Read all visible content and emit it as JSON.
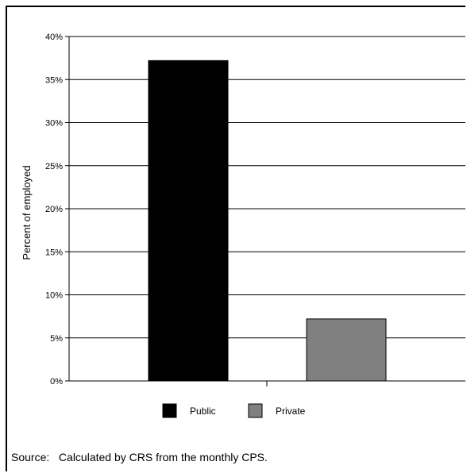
{
  "chart_data": {
    "type": "bar",
    "categories": [
      "Public",
      "Private"
    ],
    "values": [
      37.2,
      7.2
    ],
    "ylabel": "Percent of employed",
    "ylim": [
      0,
      40
    ],
    "yticks": [
      "0%",
      "5%",
      "10%",
      "15%",
      "20%",
      "25%",
      "30%",
      "35%",
      "40%"
    ],
    "grid": true,
    "legend": {
      "placement": "bottom",
      "entries": [
        {
          "label": "Public",
          "color": "#000000"
        },
        {
          "label": "Private",
          "color": "#808080"
        }
      ]
    }
  },
  "source_note": "Source:   Calculated by CRS from the monthly CPS."
}
